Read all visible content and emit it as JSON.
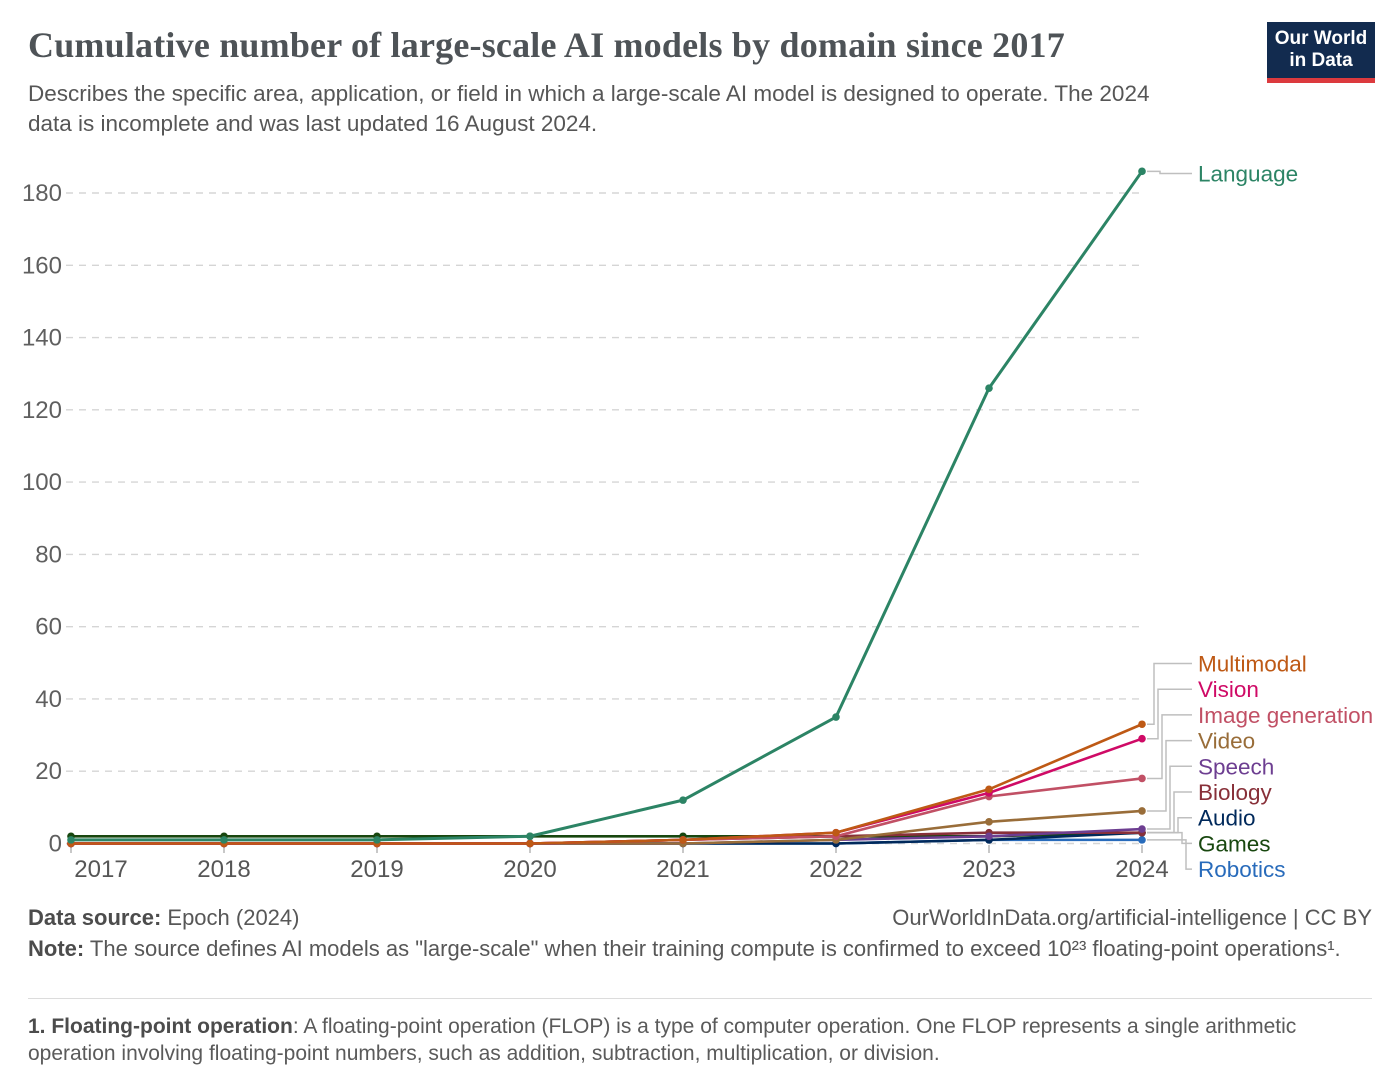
{
  "header": {
    "title": "Cumulative number of large-scale AI models by domain since 2017",
    "subtitle_line1": "Describes the specific area, application, or field in which a large-scale AI model is designed to operate. The 2024",
    "subtitle_line2": "data is incomplete and was last updated 16 August 2024.",
    "logo": {
      "line1": "Our World",
      "line2": "in Data",
      "bg_color": "#122B4F",
      "accent_color": "#DC3A3E"
    }
  },
  "chart_data": {
    "type": "line",
    "title": "Cumulative number of large-scale AI models by domain since 2017",
    "xlabel": "",
    "ylabel": "",
    "x": [
      2017,
      2018,
      2019,
      2020,
      2021,
      2022,
      2023,
      2024
    ],
    "yticks": [
      0,
      20,
      40,
      60,
      80,
      100,
      120,
      140,
      160,
      180
    ],
    "ylim": [
      0,
      190
    ],
    "grid": "horizontal dashed",
    "legend_position": "right edge direct labels",
    "series": [
      {
        "name": "Language",
        "color": "#2C8465",
        "values": [
          1,
          1,
          1,
          2,
          12,
          35,
          126,
          186
        ]
      },
      {
        "name": "Multimodal",
        "color": "#BE5915",
        "values": [
          0,
          0,
          0,
          0,
          1,
          3,
          15,
          33
        ]
      },
      {
        "name": "Vision",
        "color": "#CF0A66",
        "values": [
          0,
          0,
          0,
          0,
          1,
          3,
          14,
          29
        ]
      },
      {
        "name": "Image generation",
        "color": "#C15065",
        "values": [
          0,
          0,
          0,
          0,
          1,
          2,
          13,
          18
        ]
      },
      {
        "name": "Video",
        "color": "#996D39",
        "values": [
          0,
          0,
          0,
          0,
          0,
          1,
          6,
          9
        ]
      },
      {
        "name": "Speech",
        "color": "#6D3E91",
        "values": [
          0,
          0,
          0,
          0,
          0,
          1,
          2,
          4
        ]
      },
      {
        "name": "Biology",
        "color": "#883039",
        "values": [
          0,
          0,
          0,
          0,
          1,
          2,
          3,
          3
        ]
      },
      {
        "name": "Audio",
        "color": "#00295B",
        "values": [
          0,
          0,
          0,
          0,
          0,
          0,
          1,
          3
        ]
      },
      {
        "name": "Games",
        "color": "#18470F",
        "values": [
          2,
          2,
          2,
          2,
          2,
          2,
          2,
          3
        ]
      },
      {
        "name": "Robotics",
        "color": "#286BBB",
        "values": [
          0,
          0,
          0,
          0,
          0,
          0,
          1,
          1
        ]
      }
    ]
  },
  "footer": {
    "datasource_label": "Data source:",
    "datasource_value": " Epoch (2024)",
    "link": "OurWorldInData.org/artificial-intelligence | CC BY",
    "note_label": "Note:",
    "note_text": " The source defines AI models as \"large-scale\" when their training compute is confirmed to exceed 10²³ floating-point operations¹."
  },
  "footnote": {
    "label": "1. Floating-point operation",
    "text": ": A floating-point operation (FLOP) is a type of computer operation. One FLOP represents a single arithmetic operation involving floating-point numbers, such as addition, subtraction, multiplication, or division."
  }
}
